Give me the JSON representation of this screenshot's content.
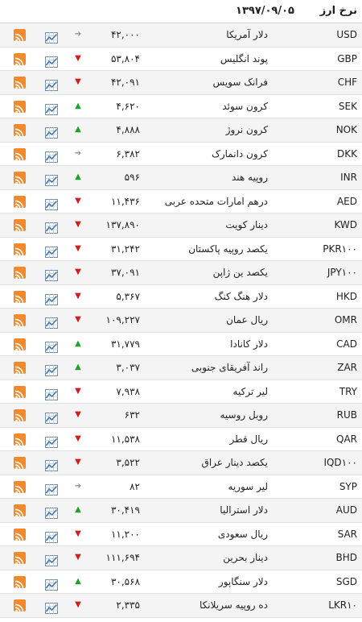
{
  "header": {
    "title": "نرخ ارز",
    "date": "۱۳۹۷/۰۹/۰۵"
  },
  "colors": {
    "up": "#1fa32a",
    "down": "#d11d1d",
    "flat": "#8a8a8a",
    "rss": "#f28a2c",
    "chart": "#4a79a7"
  },
  "rows": [
    {
      "code": "USD",
      "name": "دلار آمریکا",
      "price": "۴۲,۰۰۰",
      "trend": "flat"
    },
    {
      "code": "GBP",
      "name": "پوند انگلیس",
      "price": "۵۳,۸۰۴",
      "trend": "down"
    },
    {
      "code": "CHF",
      "name": "فرانک سویس",
      "price": "۴۲,۰۹۱",
      "trend": "down"
    },
    {
      "code": "SEK",
      "name": "کرون سوئد",
      "price": "۴,۶۲۰",
      "trend": "up"
    },
    {
      "code": "NOK",
      "name": "کرون نروژ",
      "price": "۴,۸۸۸",
      "trend": "up"
    },
    {
      "code": "DKK",
      "name": "کرون دانمارک",
      "price": "۶,۳۸۲",
      "trend": "flat"
    },
    {
      "code": "INR",
      "name": "روپیه هند",
      "price": "۵۹۶",
      "trend": "up"
    },
    {
      "code": "AED",
      "name": "درهم امارات متحده عربی",
      "price": "۱۱,۴۳۶",
      "trend": "down"
    },
    {
      "code": "KWD",
      "name": "دینار کویت",
      "price": "۱۳۷,۸۹۰",
      "trend": "down"
    },
    {
      "code": "PKR۱۰۰",
      "name": "یکصد روپیه پاکستان",
      "price": "۳۱,۲۴۲",
      "trend": "down"
    },
    {
      "code": "JPY۱۰۰",
      "name": "یکصد ین ژاپن",
      "price": "۳۷,۰۹۱",
      "trend": "down"
    },
    {
      "code": "HKD",
      "name": "دلار هنگ کنگ",
      "price": "۵,۳۶۷",
      "trend": "down"
    },
    {
      "code": "OMR",
      "name": "ریال عمان",
      "price": "۱۰۹,۲۲۷",
      "trend": "down"
    },
    {
      "code": "CAD",
      "name": "دلار کانادا",
      "price": "۳۱,۷۷۹",
      "trend": "up"
    },
    {
      "code": "ZAR",
      "name": "راند آفریقای جنوبی",
      "price": "۳,۰۳۷",
      "trend": "up"
    },
    {
      "code": "TRY",
      "name": "لیر ترکیه",
      "price": "۷,۹۳۸",
      "trend": "down"
    },
    {
      "code": "RUB",
      "name": "روبل روسیه",
      "price": "۶۳۲",
      "trend": "down"
    },
    {
      "code": "QAR",
      "name": "ریال قطر",
      "price": "۱۱,۵۳۸",
      "trend": "down"
    },
    {
      "code": "IQD۱۰۰",
      "name": "یکصد دینار عراق",
      "price": "۳,۵۲۲",
      "trend": "down"
    },
    {
      "code": "SYP",
      "name": "لیر سوریه",
      "price": "۸۲",
      "trend": "flat"
    },
    {
      "code": "AUD",
      "name": "دلار استرالیا",
      "price": "۳۰,۴۱۹",
      "trend": "up"
    },
    {
      "code": "SAR",
      "name": "ریال سعودی",
      "price": "۱۱,۲۰۰",
      "trend": "down"
    },
    {
      "code": "BHD",
      "name": "دینار بحرین",
      "price": "۱۱۱,۶۹۴",
      "trend": "down"
    },
    {
      "code": "SGD",
      "name": "دلار سنگاپور",
      "price": "۳۰,۵۶۸",
      "trend": "up"
    },
    {
      "code": "LKR۱۰",
      "name": "ده روپیه سریلانکا",
      "price": "۲,۳۳۵",
      "trend": "down"
    }
  ]
}
